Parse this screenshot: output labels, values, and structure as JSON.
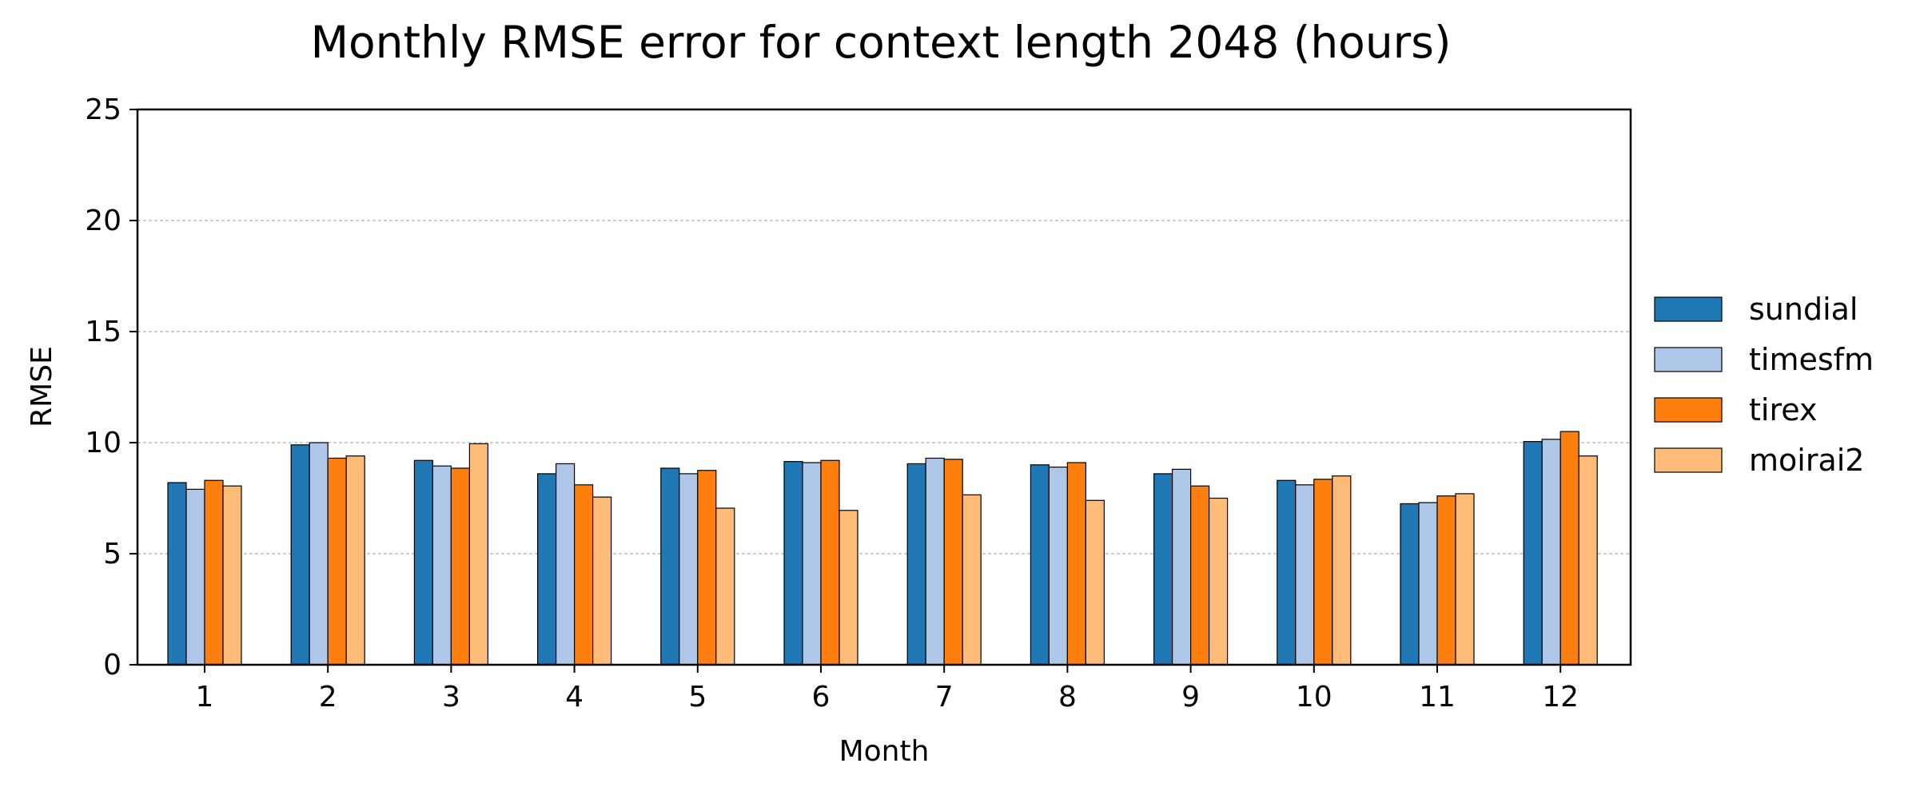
{
  "chart_data": {
    "type": "bar",
    "title": "Monthly RMSE error for context length 2048 (hours)",
    "xlabel": "Month",
    "ylabel": "RMSE",
    "ylim": [
      0,
      25
    ],
    "yticks": [
      "0",
      "5",
      "10",
      "15",
      "20",
      "25"
    ],
    "grid": "horizontal dashed",
    "legend_position": "right",
    "categories": [
      "1",
      "2",
      "3",
      "4",
      "5",
      "6",
      "7",
      "8",
      "9",
      "10",
      "11",
      "12"
    ],
    "series": [
      {
        "name": "sundial",
        "color": "#1f77b4",
        "values": [
          8.2,
          9.9,
          9.2,
          8.6,
          8.85,
          9.15,
          9.05,
          9.0,
          8.6,
          8.3,
          7.25,
          10.05
        ]
      },
      {
        "name": "timesfm",
        "color": "#aec7e8",
        "values": [
          7.9,
          10.0,
          8.95,
          9.05,
          8.6,
          9.1,
          9.3,
          8.9,
          8.8,
          8.1,
          7.3,
          10.15
        ]
      },
      {
        "name": "tirex",
        "color": "#ff7f0e",
        "values": [
          8.3,
          9.3,
          8.85,
          8.1,
          8.75,
          9.2,
          9.25,
          9.1,
          8.05,
          8.35,
          7.6,
          10.5
        ]
      },
      {
        "name": "moirai2",
        "color": "#ffbb78",
        "values": [
          8.05,
          9.4,
          9.95,
          7.55,
          7.05,
          6.95,
          7.65,
          7.4,
          7.5,
          8.5,
          7.7,
          9.4
        ]
      }
    ]
  }
}
